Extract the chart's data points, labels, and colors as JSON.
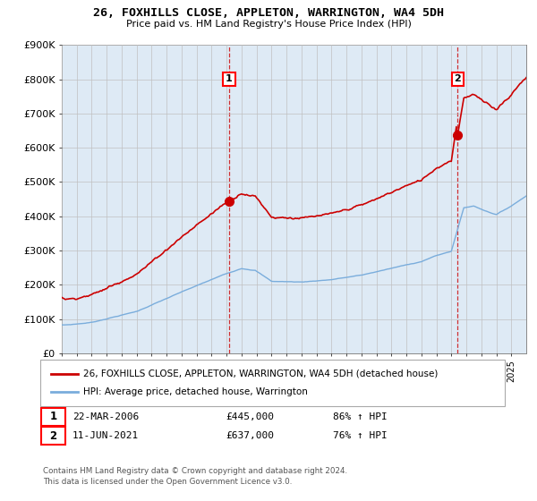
{
  "title": "26, FOXHILLS CLOSE, APPLETON, WARRINGTON, WA4 5DH",
  "subtitle": "Price paid vs. HM Land Registry's House Price Index (HPI)",
  "ylim": [
    0,
    900000
  ],
  "yticks": [
    0,
    100000,
    200000,
    300000,
    400000,
    500000,
    600000,
    700000,
    800000,
    900000
  ],
  "ytick_labels": [
    "£0",
    "£100K",
    "£200K",
    "£300K",
    "£400K",
    "£500K",
    "£600K",
    "£700K",
    "£800K",
    "£900K"
  ],
  "hpi_color": "#7aaddc",
  "price_color": "#cc0000",
  "plot_bg_color": "#deeaf5",
  "marker1_price": 445000,
  "marker1_date": "22-MAR-2006",
  "marker1_hpi_text": "86% ↑ HPI",
  "marker2_price": 637000,
  "marker2_date": "11-JUN-2021",
  "marker2_hpi_text": "76% ↑ HPI",
  "legend_line1": "26, FOXHILLS CLOSE, APPLETON, WARRINGTON, WA4 5DH (detached house)",
  "legend_line2": "HPI: Average price, detached house, Warrington",
  "footer": "Contains HM Land Registry data © Crown copyright and database right 2024.\nThis data is licensed under the Open Government Licence v3.0.",
  "background_color": "#ffffff",
  "grid_color": "#c0c0c0",
  "x_start_year": 1995,
  "x_end_year": 2026
}
